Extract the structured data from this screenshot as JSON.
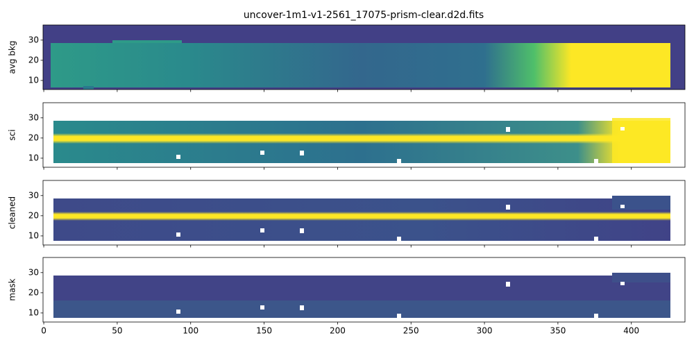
{
  "chart_data": [
    {
      "type": "image",
      "title": "uncover-1m1-v1-2561_17075-prism-clear.d2d.fits",
      "ylabel": "avg bkg",
      "xlim": [
        -0.5,
        436.5
      ],
      "ylim": [
        5.5,
        37.5
      ],
      "xticks": [
        0,
        50,
        100,
        150,
        200,
        250,
        300,
        350,
        400
      ],
      "yticks": [
        10,
        20,
        30
      ]
    },
    {
      "type": "image",
      "ylabel": "sci",
      "xlim": [
        -0.5,
        436.5
      ],
      "ylim": [
        5.5,
        37.5
      ],
      "xticks": [
        0,
        50,
        100,
        150,
        200,
        250,
        300,
        350,
        400
      ],
      "yticks": [
        10,
        20,
        30
      ]
    },
    {
      "type": "image",
      "ylabel": "cleaned",
      "xlim": [
        -0.5,
        436.5
      ],
      "ylim": [
        5.5,
        37.5
      ],
      "xticks": [
        0,
        50,
        100,
        150,
        200,
        250,
        300,
        350,
        400
      ],
      "yticks": [
        10,
        20,
        30
      ]
    },
    {
      "type": "image",
      "ylabel": "mask",
      "xlim": [
        -0.5,
        436.5
      ],
      "ylim": [
        5.5,
        37.5
      ],
      "xticks": [
        0,
        50,
        100,
        150,
        200,
        250,
        300,
        350,
        400
      ],
      "yticks": [
        10,
        20,
        30
      ],
      "xtick_labels": true
    }
  ]
}
